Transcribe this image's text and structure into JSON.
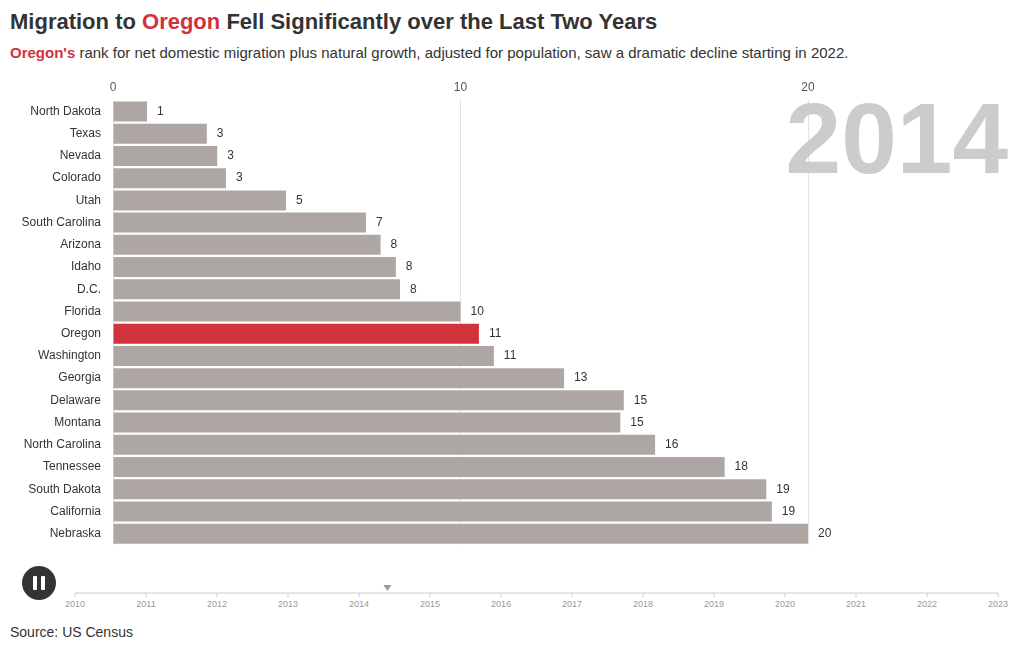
{
  "chart_data": {
    "type": "bar",
    "orientation": "horizontal",
    "title": "Migration to Oregon Fell Significantly over the Last Two Years",
    "subtitle": "Oregon's rank for net domestic migration plus natural growth, adjusted for population, saw a dramatic decline starting in 2022.",
    "categories": [
      "North Dakota",
      "Texas",
      "Nevada",
      "Colorado",
      "Utah",
      "South Carolina",
      "Arizona",
      "Idaho",
      "D.C.",
      "Florida",
      "Oregon",
      "Washington",
      "Georgia",
      "Delaware",
      "Montana",
      "North Carolina",
      "Tennessee",
      "South Dakota",
      "California",
      "Nebraska"
    ],
    "values": [
      0.98,
      2.7,
      3.0,
      3.25,
      4.98,
      7.28,
      7.7,
      8.14,
      8.26,
      10.0,
      10.53,
      10.96,
      12.98,
      14.7,
      14.6,
      15.6,
      17.6,
      18.8,
      18.96,
      20.0
    ],
    "value_labels": [
      "1",
      "3",
      "3",
      "3",
      "5",
      "7",
      "8",
      "8",
      "8",
      "10",
      "11",
      "11",
      "13",
      "15",
      "15",
      "16",
      "18",
      "19",
      "19",
      "20"
    ],
    "colors": [
      "#aea6a3",
      "#aea6a3",
      "#aea6a3",
      "#aea6a3",
      "#aea6a3",
      "#aea6a3",
      "#aea6a3",
      "#aea6a3",
      "#aea6a3",
      "#aea6a3",
      "#d1323c",
      "#aea6a3",
      "#aea6a3",
      "#aea6a3",
      "#aea6a3",
      "#aea6a3",
      "#aea6a3",
      "#aea6a3",
      "#aea6a3",
      "#aea6a3"
    ],
    "xlim": [
      0,
      20
    ],
    "xticks": [
      0,
      10,
      20
    ],
    "grid": true,
    "data_labels": true,
    "annotations": [
      {
        "text": "2014"
      }
    ]
  },
  "timeline": {
    "ticks": [
      2010,
      2011,
      2012,
      2013,
      2014,
      2015,
      2016,
      2017,
      2018,
      2019,
      2020,
      2021,
      2022,
      2023
    ],
    "position": 2014.4
  },
  "source": "Source: US Census"
}
